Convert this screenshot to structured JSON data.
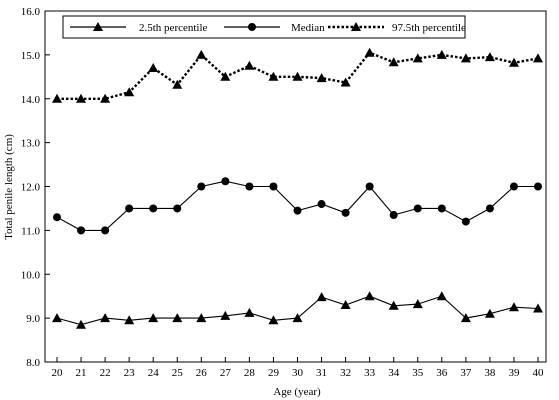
{
  "chart_data": {
    "type": "line",
    "title": "",
    "xlabel": "Age (year)",
    "ylabel": "Total penile length (cm)",
    "x": [
      20,
      21,
      22,
      23,
      24,
      25,
      26,
      27,
      28,
      29,
      30,
      31,
      32,
      33,
      34,
      35,
      36,
      37,
      38,
      39,
      40
    ],
    "ylim": [
      8.0,
      16.0
    ],
    "yticks": [
      "8.0",
      "9.0",
      "10.0",
      "11.0",
      "12.0",
      "13.0",
      "14.0",
      "15.0",
      "16.0"
    ],
    "grid": false,
    "legend_position": "top",
    "series": [
      {
        "name": "2.5th percentile",
        "marker": "triangle",
        "line": "solid",
        "values": [
          9.0,
          8.85,
          9.0,
          8.95,
          9.0,
          9.0,
          9.0,
          9.05,
          9.12,
          8.95,
          9.0,
          9.48,
          9.3,
          9.5,
          9.28,
          9.32,
          9.5,
          9.0,
          9.1,
          9.25,
          9.22
        ]
      },
      {
        "name": "Median",
        "marker": "circle",
        "line": "solid",
        "values": [
          11.3,
          11.0,
          11.0,
          11.5,
          11.5,
          11.5,
          12.0,
          12.12,
          12.0,
          12.0,
          11.45,
          11.6,
          11.4,
          12.0,
          11.35,
          11.5,
          11.5,
          11.2,
          11.5,
          12.0,
          12.0
        ]
      },
      {
        "name": "97.5th percentile",
        "marker": "triangle",
        "line": "dotted",
        "values": [
          14.0,
          14.0,
          14.0,
          14.15,
          14.7,
          14.32,
          15.0,
          14.5,
          14.75,
          14.5,
          14.5,
          14.47,
          14.37,
          15.05,
          14.83,
          14.92,
          15.0,
          14.92,
          14.95,
          14.82,
          14.92
        ]
      }
    ]
  }
}
